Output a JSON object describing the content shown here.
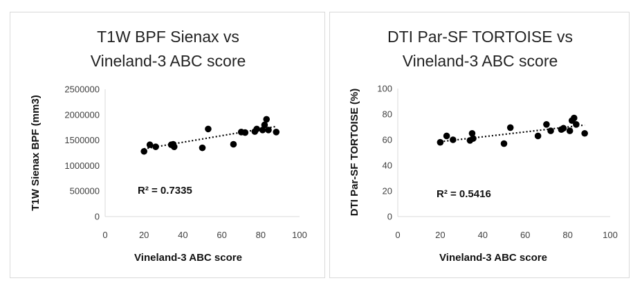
{
  "chart_data": [
    {
      "type": "scatter",
      "title": [
        "T1W BPF Sienax  vs",
        "Vineland-3 ABC score"
      ],
      "xlabel": "Vineland-3 ABC score",
      "ylabel": "T1W Sienax BPF (mm3)",
      "xlim": [
        0,
        100
      ],
      "ylim": [
        0,
        2500000
      ],
      "xticks": [
        "0",
        "20",
        "40",
        "60",
        "80",
        "100"
      ],
      "yticks": [
        "0",
        "500000",
        "1000000",
        "1500000",
        "2000000",
        "2500000"
      ],
      "annotation": "R² = 0.7335",
      "trendline": {
        "style": "dotted",
        "x": [
          20,
          88
        ],
        "y": [
          1330000,
          1770000
        ]
      },
      "grid": false,
      "point_color": "#000000",
      "points": [
        {
          "x": 20,
          "y": 1280000
        },
        {
          "x": 23,
          "y": 1410000
        },
        {
          "x": 26,
          "y": 1370000
        },
        {
          "x": 34,
          "y": 1410000
        },
        {
          "x": 35,
          "y": 1420000
        },
        {
          "x": 35.5,
          "y": 1370000
        },
        {
          "x": 50,
          "y": 1350000
        },
        {
          "x": 53,
          "y": 1720000
        },
        {
          "x": 66,
          "y": 1420000
        },
        {
          "x": 70,
          "y": 1660000
        },
        {
          "x": 72,
          "y": 1650000
        },
        {
          "x": 77,
          "y": 1670000
        },
        {
          "x": 78,
          "y": 1720000
        },
        {
          "x": 81,
          "y": 1700000
        },
        {
          "x": 82,
          "y": 1800000
        },
        {
          "x": 83,
          "y": 1910000
        },
        {
          "x": 84,
          "y": 1700000
        },
        {
          "x": 88,
          "y": 1660000
        }
      ]
    },
    {
      "type": "scatter",
      "title": [
        "DTI Par-SF TORTOISE vs",
        "Vineland-3 ABC score"
      ],
      "xlabel": "Vineland-3 ABC score",
      "ylabel": "DTI Par-SF TORTOISE (%)",
      "xlim": [
        0,
        100
      ],
      "ylim": [
        0,
        100
      ],
      "xticks": [
        "0",
        "20",
        "40",
        "60",
        "80",
        "100"
      ],
      "yticks": [
        "0",
        "20",
        "40",
        "60",
        "80",
        "100"
      ],
      "annotation": "R² = 0.5416",
      "trendline": {
        "style": "dotted",
        "x": [
          20,
          88
        ],
        "y": [
          58.5,
          71.5
        ]
      },
      "grid": false,
      "point_color": "#000000",
      "points": [
        {
          "x": 20,
          "y": 58
        },
        {
          "x": 23,
          "y": 63
        },
        {
          "x": 26,
          "y": 60
        },
        {
          "x": 34,
          "y": 59.5
        },
        {
          "x": 35,
          "y": 65
        },
        {
          "x": 35.5,
          "y": 61
        },
        {
          "x": 50,
          "y": 57
        },
        {
          "x": 53,
          "y": 69.5
        },
        {
          "x": 66,
          "y": 63
        },
        {
          "x": 70,
          "y": 72
        },
        {
          "x": 72,
          "y": 67
        },
        {
          "x": 77,
          "y": 68
        },
        {
          "x": 78,
          "y": 69
        },
        {
          "x": 81,
          "y": 67
        },
        {
          "x": 82,
          "y": 75
        },
        {
          "x": 83,
          "y": 77
        },
        {
          "x": 84,
          "y": 72
        },
        {
          "x": 88,
          "y": 65
        }
      ]
    }
  ]
}
